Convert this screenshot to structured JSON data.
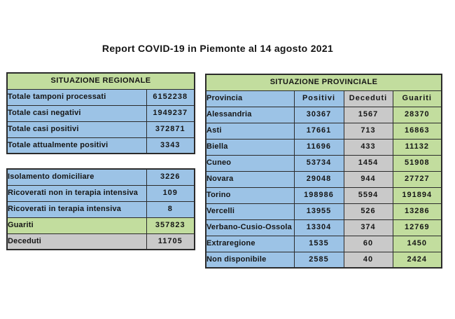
{
  "title": "Report COVID-19 in Piemonte al 14 agosto 2021",
  "colors": {
    "green": "#c2dd9e",
    "blue": "#9cc3e6",
    "gray": "#c9c9c9",
    "border": "#2b2b2b"
  },
  "regional": {
    "title": "SITUAZIONE REGIONALE",
    "rows": [
      {
        "label": "Totale tamponi processati",
        "value": "6152238"
      },
      {
        "label": "Totale casi negativi",
        "value": "1949237"
      },
      {
        "label": "Totale casi positivi",
        "value": "372871"
      },
      {
        "label": "Totale attualmente positivi",
        "value": "3343"
      }
    ]
  },
  "status": {
    "rows": [
      {
        "label": "Isolamento domiciliare",
        "value": "3226",
        "tone": "blue"
      },
      {
        "label": "Ricoverati non in terapia intensiva",
        "value": "109",
        "tone": "blue"
      },
      {
        "label": "Ricoverati in terapia intensiva",
        "value": "8",
        "tone": "blue"
      },
      {
        "label": "Guariti",
        "value": "357823",
        "tone": "green"
      },
      {
        "label": "Deceduti",
        "value": "11705",
        "tone": "gray"
      }
    ]
  },
  "provincial": {
    "title": "SITUAZIONE PROVINCIALE",
    "columns": {
      "provincia": "Provincia",
      "positivi": "Positivi",
      "deceduti": "Deceduti",
      "guariti": "Guariti"
    },
    "rows": [
      {
        "provincia": "Alessandria",
        "positivi": "30367",
        "deceduti": "1567",
        "guariti": "28370"
      },
      {
        "provincia": "Asti",
        "positivi": "17661",
        "deceduti": "713",
        "guariti": "16863"
      },
      {
        "provincia": "Biella",
        "positivi": "11696",
        "deceduti": "433",
        "guariti": "11132"
      },
      {
        "provincia": "Cuneo",
        "positivi": "53734",
        "deceduti": "1454",
        "guariti": "51908"
      },
      {
        "provincia": "Novara",
        "positivi": "29048",
        "deceduti": "944",
        "guariti": "27727"
      },
      {
        "provincia": "Torino",
        "positivi": "198986",
        "deceduti": "5594",
        "guariti": "191894"
      },
      {
        "provincia": "Vercelli",
        "positivi": "13955",
        "deceduti": "526",
        "guariti": "13286"
      },
      {
        "provincia": "Verbano-Cusio-Ossola",
        "positivi": "13304",
        "deceduti": "374",
        "guariti": "12769"
      },
      {
        "provincia": "Extraregione",
        "positivi": "1535",
        "deceduti": "60",
        "guariti": "1450"
      },
      {
        "provincia": "Non disponibile",
        "positivi": "2585",
        "deceduti": "40",
        "guariti": "2424"
      }
    ]
  }
}
